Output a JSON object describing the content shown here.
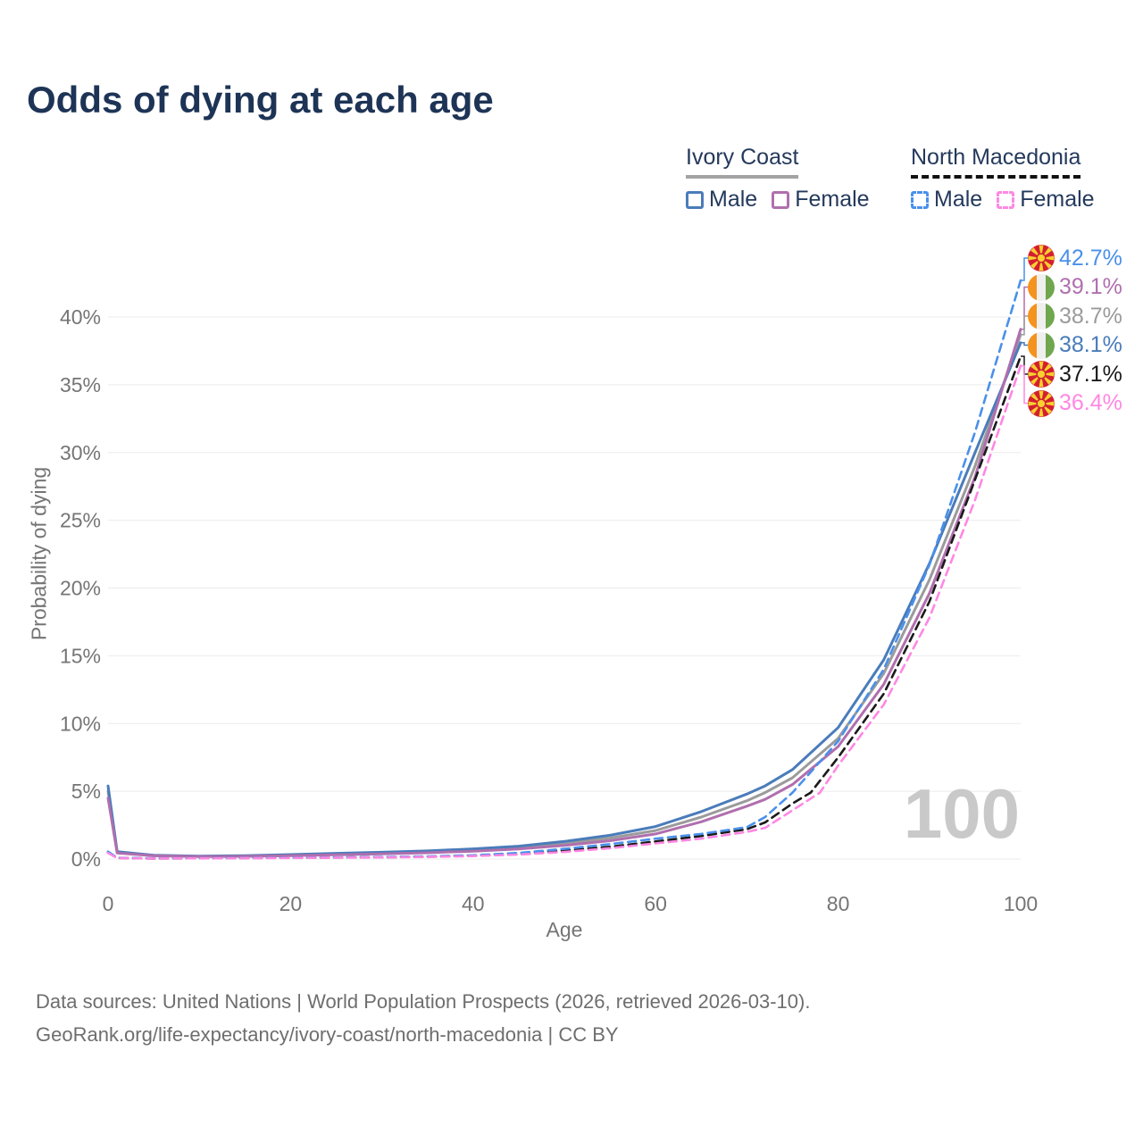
{
  "title": "Odds of dying at each age",
  "watermark": "100",
  "legend": {
    "groups": [
      {
        "country": "Ivory Coast",
        "line_style": "solid",
        "underline_color": "#a3a3a3",
        "items": [
          {
            "label": "Male",
            "color": "#4a7cba",
            "dashed": false
          },
          {
            "label": "Female",
            "color": "#b06fae",
            "dashed": false
          }
        ]
      },
      {
        "country": "North Macedonia",
        "line_style": "dashed",
        "underline_color": "#111111",
        "items": [
          {
            "label": "Male",
            "color": "#4a90ea",
            "dashed": true
          },
          {
            "label": "Female",
            "color": "#ff87e3",
            "dashed": true
          }
        ]
      }
    ]
  },
  "end_labels": [
    {
      "value": "42.7%",
      "flag": "north-macedonia",
      "series": "nm-male",
      "color": "#4a90ea"
    },
    {
      "value": "39.1%",
      "flag": "ivory-coast",
      "series": "ic-female",
      "color": "#b06fae"
    },
    {
      "value": "38.7%",
      "flag": "ivory-coast",
      "series": "ic-both",
      "color": "#9b9b9b"
    },
    {
      "value": "38.1%",
      "flag": "ivory-coast",
      "series": "ic-male",
      "color": "#4a7cba"
    },
    {
      "value": "37.1%",
      "flag": "north-macedonia",
      "series": "nm-both",
      "color": "#1a1a1a"
    },
    {
      "value": "36.4%",
      "flag": "north-macedonia",
      "series": "nm-female",
      "color": "#ff87e3"
    }
  ],
  "footer": {
    "line1": "Data sources: United Nations | World Population Prospects (2026, retrieved 2026-03-10).",
    "line2": "GeoRank.org/life-expectancy/ivory-coast/north-macedonia | CC BY"
  },
  "chart_data": {
    "type": "line",
    "title": "Odds of dying at each age",
    "xlabel": "Age",
    "ylabel": "Probability of dying",
    "xlim": [
      0,
      100
    ],
    "ylim_percent": [
      0,
      44
    ],
    "grid": "horizontal-only",
    "legend_position": "top-right",
    "xticks": [
      {
        "v": 0,
        "label": "0"
      },
      {
        "v": 20,
        "label": "20"
      },
      {
        "v": 40,
        "label": "40"
      },
      {
        "v": 60,
        "label": "60"
      },
      {
        "v": 80,
        "label": "80"
      },
      {
        "v": 100,
        "label": "100"
      }
    ],
    "yticks": [
      {
        "v": 0,
        "label": "0%"
      },
      {
        "v": 5,
        "label": "5%"
      },
      {
        "v": 10,
        "label": "10%"
      },
      {
        "v": 15,
        "label": "15%"
      },
      {
        "v": 20,
        "label": "20%"
      },
      {
        "v": 25,
        "label": "25%"
      },
      {
        "v": 30,
        "label": "30%"
      },
      {
        "v": 35,
        "label": "35%"
      },
      {
        "v": 40,
        "label": "40%"
      }
    ],
    "series": [
      {
        "id": "ic-both",
        "name": "Ivory Coast Both sexes",
        "color": "#9b9b9b",
        "dashed": false,
        "end_value_percent": 38.7,
        "points": [
          [
            0,
            5.0
          ],
          [
            1,
            0.5
          ],
          [
            5,
            0.26
          ],
          [
            10,
            0.2
          ],
          [
            15,
            0.22
          ],
          [
            20,
            0.29
          ],
          [
            25,
            0.37
          ],
          [
            30,
            0.44
          ],
          [
            35,
            0.53
          ],
          [
            40,
            0.66
          ],
          [
            45,
            0.85
          ],
          [
            50,
            1.15
          ],
          [
            55,
            1.55
          ],
          [
            60,
            2.1
          ],
          [
            65,
            3.1
          ],
          [
            70,
            4.3
          ],
          [
            72,
            4.9
          ],
          [
            75,
            6.0
          ],
          [
            80,
            8.9
          ],
          [
            85,
            13.7
          ],
          [
            90,
            20.6
          ],
          [
            95,
            29.0
          ],
          [
            100,
            38.7
          ]
        ]
      },
      {
        "id": "ic-male",
        "name": "Ivory Coast Male",
        "color": "#4a7cba",
        "dashed": false,
        "end_value_percent": 38.1,
        "points": [
          [
            0,
            5.4
          ],
          [
            1,
            0.55
          ],
          [
            5,
            0.28
          ],
          [
            10,
            0.22
          ],
          [
            15,
            0.25
          ],
          [
            20,
            0.33
          ],
          [
            25,
            0.42
          ],
          [
            30,
            0.5
          ],
          [
            35,
            0.6
          ],
          [
            40,
            0.75
          ],
          [
            45,
            0.95
          ],
          [
            50,
            1.3
          ],
          [
            55,
            1.75
          ],
          [
            60,
            2.4
          ],
          [
            65,
            3.5
          ],
          [
            70,
            4.8
          ],
          [
            72,
            5.4
          ],
          [
            75,
            6.6
          ],
          [
            80,
            9.7
          ],
          [
            85,
            14.7
          ],
          [
            90,
            21.8
          ],
          [
            95,
            30.0
          ],
          [
            100,
            38.1
          ]
        ]
      },
      {
        "id": "ic-female",
        "name": "Ivory Coast Female",
        "color": "#b06fae",
        "dashed": false,
        "end_value_percent": 39.1,
        "points": [
          [
            0,
            4.5
          ],
          [
            1,
            0.45
          ],
          [
            5,
            0.24
          ],
          [
            10,
            0.18
          ],
          [
            15,
            0.2
          ],
          [
            20,
            0.25
          ],
          [
            25,
            0.31
          ],
          [
            30,
            0.38
          ],
          [
            35,
            0.46
          ],
          [
            40,
            0.58
          ],
          [
            45,
            0.74
          ],
          [
            50,
            1.0
          ],
          [
            55,
            1.35
          ],
          [
            60,
            1.85
          ],
          [
            65,
            2.75
          ],
          [
            70,
            3.9
          ],
          [
            72,
            4.4
          ],
          [
            75,
            5.5
          ],
          [
            80,
            8.3
          ],
          [
            85,
            12.9
          ],
          [
            90,
            19.6
          ],
          [
            95,
            28.2
          ],
          [
            100,
            39.1
          ]
        ]
      },
      {
        "id": "nm-both",
        "name": "North Macedonia Both sexes",
        "color": "#1a1a1a",
        "dashed": true,
        "end_value_percent": 37.1,
        "points": [
          [
            0,
            0.5
          ],
          [
            1,
            0.08
          ],
          [
            5,
            0.04
          ],
          [
            10,
            0.05
          ],
          [
            15,
            0.07
          ],
          [
            20,
            0.09
          ],
          [
            25,
            0.11
          ],
          [
            30,
            0.13
          ],
          [
            35,
            0.17
          ],
          [
            40,
            0.25
          ],
          [
            45,
            0.38
          ],
          [
            50,
            0.62
          ],
          [
            55,
            0.9
          ],
          [
            60,
            1.3
          ],
          [
            65,
            1.7
          ],
          [
            70,
            2.2
          ],
          [
            72,
            2.7
          ],
          [
            75,
            4.1
          ],
          [
            77,
            4.9
          ],
          [
            80,
            7.5
          ],
          [
            85,
            12.2
          ],
          [
            90,
            19.0
          ],
          [
            95,
            28.0
          ],
          [
            100,
            37.1
          ]
        ]
      },
      {
        "id": "nm-male",
        "name": "North Macedonia Male",
        "color": "#4a90ea",
        "dashed": true,
        "end_value_percent": 42.7,
        "points": [
          [
            0,
            0.55
          ],
          [
            1,
            0.09
          ],
          [
            5,
            0.05
          ],
          [
            10,
            0.06
          ],
          [
            15,
            0.08
          ],
          [
            20,
            0.1
          ],
          [
            25,
            0.12
          ],
          [
            30,
            0.15
          ],
          [
            35,
            0.2
          ],
          [
            40,
            0.28
          ],
          [
            45,
            0.45
          ],
          [
            50,
            0.75
          ],
          [
            55,
            1.1
          ],
          [
            60,
            1.5
          ],
          [
            65,
            1.85
          ],
          [
            70,
            2.35
          ],
          [
            72,
            3.1
          ],
          [
            75,
            4.9
          ],
          [
            80,
            8.7
          ],
          [
            85,
            14.0
          ],
          [
            90,
            21.7
          ],
          [
            95,
            31.5
          ],
          [
            100,
            42.7
          ]
        ]
      },
      {
        "id": "nm-female",
        "name": "North Macedonia Female",
        "color": "#ff87e3",
        "dashed": true,
        "end_value_percent": 36.4,
        "points": [
          [
            0,
            0.45
          ],
          [
            1,
            0.07
          ],
          [
            5,
            0.04
          ],
          [
            10,
            0.05
          ],
          [
            15,
            0.06
          ],
          [
            20,
            0.08
          ],
          [
            25,
            0.1
          ],
          [
            30,
            0.12
          ],
          [
            35,
            0.16
          ],
          [
            40,
            0.22
          ],
          [
            45,
            0.33
          ],
          [
            50,
            0.52
          ],
          [
            55,
            0.8
          ],
          [
            60,
            1.15
          ],
          [
            65,
            1.5
          ],
          [
            70,
            2.0
          ],
          [
            72,
            2.3
          ],
          [
            75,
            3.6
          ],
          [
            78,
            4.9
          ],
          [
            80,
            6.9
          ],
          [
            85,
            11.4
          ],
          [
            90,
            17.8
          ],
          [
            95,
            26.5
          ],
          [
            100,
            36.4
          ]
        ]
      }
    ]
  }
}
